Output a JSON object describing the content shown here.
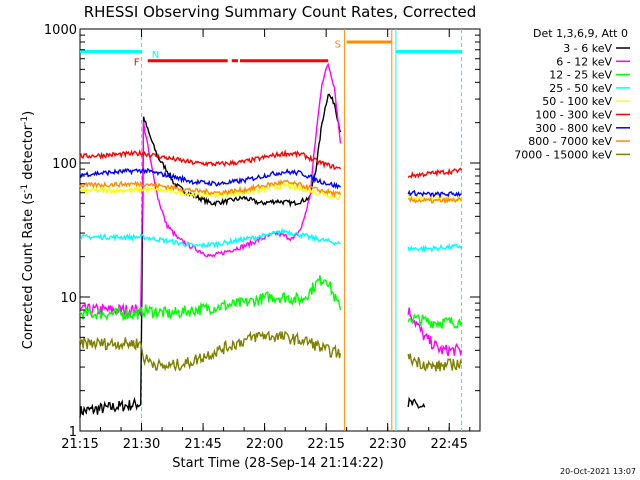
{
  "chart_data": {
    "type": "line",
    "title": "RHESSI Observing Summary Count Rates, Corrected",
    "xlabel": "Start Time (28-Sep-14 21:14:22)",
    "ylabel": "Corrected Count Rate (s",
    "ylabel_sup1": "-1",
    "ylabel_mid": " detector",
    "ylabel_sup2": "-1",
    "ylabel_end": ")",
    "footer_date": "20-Oct-2021 13:07",
    "y_scale": "log",
    "ylim": [
      1,
      1000
    ],
    "xlim_minutes_after_2115": [
      0,
      97.5
    ],
    "x_ticks": [
      {
        "label": "21:15",
        "t": 0
      },
      {
        "label": "21:30",
        "t": 15
      },
      {
        "label": "21:45",
        "t": 30
      },
      {
        "label": "22:00",
        "t": 45
      },
      {
        "label": "22:15",
        "t": 60
      },
      {
        "label": "22:30",
        "t": 75
      },
      {
        "label": "22:45",
        "t": 90
      }
    ],
    "y_ticks": [
      {
        "label": "1",
        "v": 1
      },
      {
        "label": "10",
        "v": 10
      },
      {
        "label": "100",
        "v": 100
      },
      {
        "label": "1000",
        "v": 1000
      }
    ],
    "legend_title": "Det 1,3,6,9, Att 0",
    "legend_placement": "right",
    "series": [
      {
        "name": "3 - 6 keV",
        "color": "#000000",
        "points": [
          [
            0,
            1.4
          ],
          [
            14.8,
            1.6
          ],
          [
            15.5,
            220
          ],
          [
            17,
            160
          ],
          [
            19,
            110
          ],
          [
            21,
            90
          ],
          [
            23,
            70
          ],
          [
            26,
            60
          ],
          [
            29,
            55
          ],
          [
            32,
            50
          ],
          [
            36,
            52
          ],
          [
            40,
            55
          ],
          [
            44,
            50
          ],
          [
            48,
            52
          ],
          [
            52,
            50
          ],
          [
            54,
            52
          ],
          [
            56,
            55
          ],
          [
            57.5,
            90
          ],
          [
            59,
            200
          ],
          [
            60.5,
            330
          ],
          [
            62,
            280
          ],
          [
            63.5,
            170
          ],
          [
            0,
            0
          ],
          [
            80,
            1.6
          ],
          [
            84,
            1.5
          ]
        ]
      },
      {
        "name": "6 - 12 keV",
        "color": "#ff00ff",
        "points": [
          [
            0,
            8
          ],
          [
            14.8,
            8
          ],
          [
            15.5,
            200
          ],
          [
            17,
            110
          ],
          [
            19,
            55
          ],
          [
            21,
            35
          ],
          [
            24,
            27
          ],
          [
            28,
            23
          ],
          [
            32,
            20
          ],
          [
            36,
            22
          ],
          [
            40,
            24
          ],
          [
            44,
            27
          ],
          [
            48,
            30
          ],
          [
            52,
            27
          ],
          [
            54,
            33
          ],
          [
            56,
            55
          ],
          [
            57.5,
            160
          ],
          [
            59,
            400
          ],
          [
            60.5,
            550
          ],
          [
            62,
            370
          ],
          [
            63.5,
            140
          ],
          [
            0,
            0
          ],
          [
            80,
            8
          ],
          [
            84,
            5
          ],
          [
            88,
            4
          ],
          [
            93,
            4
          ]
        ]
      },
      {
        "name": "12 - 25 keV",
        "color": "#00ff00",
        "points": [
          [
            0,
            7.5
          ],
          [
            14.8,
            7.5
          ],
          [
            15.5,
            8
          ],
          [
            22,
            7.5
          ],
          [
            28,
            8
          ],
          [
            34,
            8.5
          ],
          [
            40,
            9
          ],
          [
            46,
            10
          ],
          [
            50,
            10
          ],
          [
            54,
            9.5
          ],
          [
            56,
            11
          ],
          [
            58,
            13
          ],
          [
            60,
            14
          ],
          [
            62,
            10
          ],
          [
            63.5,
            8
          ],
          [
            0,
            0
          ],
          [
            80,
            7
          ],
          [
            86,
            6.5
          ],
          [
            93,
            6.5
          ]
        ]
      },
      {
        "name": "25 - 50 keV",
        "color": "#00ffff",
        "points": [
          [
            0,
            28
          ],
          [
            14.8,
            28
          ],
          [
            15.5,
            28
          ],
          [
            22,
            26
          ],
          [
            28,
            24
          ],
          [
            34,
            25
          ],
          [
            40,
            27
          ],
          [
            46,
            29
          ],
          [
            50,
            31
          ],
          [
            54,
            29
          ],
          [
            58,
            27
          ],
          [
            63.5,
            25
          ],
          [
            0,
            0
          ],
          [
            80,
            23
          ],
          [
            86,
            23
          ],
          [
            93,
            24
          ]
        ]
      },
      {
        "name": "50 - 100 keV",
        "color": "#ffff00",
        "points": [
          [
            0,
            62
          ],
          [
            14.8,
            63
          ],
          [
            15.5,
            64
          ],
          [
            22,
            62
          ],
          [
            28,
            58
          ],
          [
            34,
            58
          ],
          [
            40,
            60
          ],
          [
            46,
            65
          ],
          [
            50,
            68
          ],
          [
            54,
            64
          ],
          [
            58,
            60
          ],
          [
            63.5,
            55
          ],
          [
            0,
            0
          ],
          [
            80,
            56
          ],
          [
            86,
            54
          ],
          [
            93,
            54
          ]
        ]
      },
      {
        "name": "100 - 300 keV",
        "color": "#ff0000",
        "points": [
          [
            0,
            112
          ],
          [
            14.8,
            118
          ],
          [
            15.5,
            118
          ],
          [
            22,
            108
          ],
          [
            28,
            100
          ],
          [
            34,
            98
          ],
          [
            40,
            102
          ],
          [
            46,
            112
          ],
          [
            50,
            118
          ],
          [
            54,
            116
          ],
          [
            58,
            102
          ],
          [
            63.5,
            90
          ],
          [
            0,
            0
          ],
          [
            80,
            80
          ],
          [
            86,
            84
          ],
          [
            93,
            88
          ]
        ]
      },
      {
        "name": "300 - 800 keV",
        "color": "#0000ff",
        "points": [
          [
            0,
            82
          ],
          [
            14.8,
            88
          ],
          [
            15.5,
            88
          ],
          [
            22,
            80
          ],
          [
            28,
            72
          ],
          [
            34,
            70
          ],
          [
            40,
            74
          ],
          [
            46,
            82
          ],
          [
            50,
            86
          ],
          [
            54,
            84
          ],
          [
            58,
            74
          ],
          [
            63.5,
            66
          ],
          [
            0,
            0
          ],
          [
            80,
            60
          ],
          [
            86,
            58
          ],
          [
            93,
            59
          ]
        ]
      },
      {
        "name": "800 - 7000 keV",
        "color": "#ff8c00",
        "points": [
          [
            0,
            68
          ],
          [
            14.8,
            70
          ],
          [
            15.5,
            70
          ],
          [
            22,
            66
          ],
          [
            28,
            62
          ],
          [
            34,
            60
          ],
          [
            40,
            63
          ],
          [
            46,
            69
          ],
          [
            50,
            72
          ],
          [
            54,
            68
          ],
          [
            58,
            63
          ],
          [
            63.5,
            58
          ],
          [
            0,
            0
          ],
          [
            80,
            53
          ],
          [
            86,
            52
          ],
          [
            93,
            53
          ]
        ]
      },
      {
        "name": "7000 - 15000 keV",
        "color": "#808000",
        "points": [
          [
            0,
            4.5
          ],
          [
            14.8,
            4.5
          ],
          [
            15.5,
            3.5
          ],
          [
            20,
            3
          ],
          [
            26,
            3.2
          ],
          [
            32,
            3.8
          ],
          [
            38,
            4.5
          ],
          [
            44,
            5.2
          ],
          [
            50,
            5
          ],
          [
            56,
            4.6
          ],
          [
            60,
            4
          ],
          [
            63.5,
            3.8
          ],
          [
            0,
            0
          ],
          [
            80,
            3.5
          ],
          [
            86,
            3
          ],
          [
            93,
            3.2
          ]
        ]
      }
    ],
    "annotations": [
      {
        "label": "N",
        "color": "#00ffff",
        "t_start": 16.5
      },
      {
        "label": "F",
        "color": "#ff0000",
        "t_start": 16.5
      },
      {
        "label": "S",
        "color": "#ff8c00",
        "t_start": 65
      }
    ],
    "bars": [
      {
        "name": "night",
        "color": "#00ffff",
        "intervals": [
          [
            0,
            15
          ],
          [
            77,
            93
          ]
        ],
        "level": 680
      },
      {
        "name": "flare",
        "color": "#ff0000",
        "intervals": [
          [
            16.5,
            36
          ],
          [
            37,
            38.5
          ],
          [
            39,
            60.5
          ]
        ],
        "level": 580
      },
      {
        "name": "saa",
        "color": "#ff8c00",
        "intervals": [
          [
            65,
            76
          ]
        ],
        "level": 800
      }
    ],
    "vlines": [
      {
        "color": "#00ffff",
        "t": 15,
        "dashed": true
      },
      {
        "color": "#00ffff",
        "t": 77,
        "dashed": false
      },
      {
        "color": "#00ffff",
        "t": 93,
        "dashed": true
      },
      {
        "color": "#ff8c00",
        "t": 64.5,
        "dashed": false
      },
      {
        "color": "#ff8c00",
        "t": 76,
        "dashed": false
      }
    ]
  }
}
